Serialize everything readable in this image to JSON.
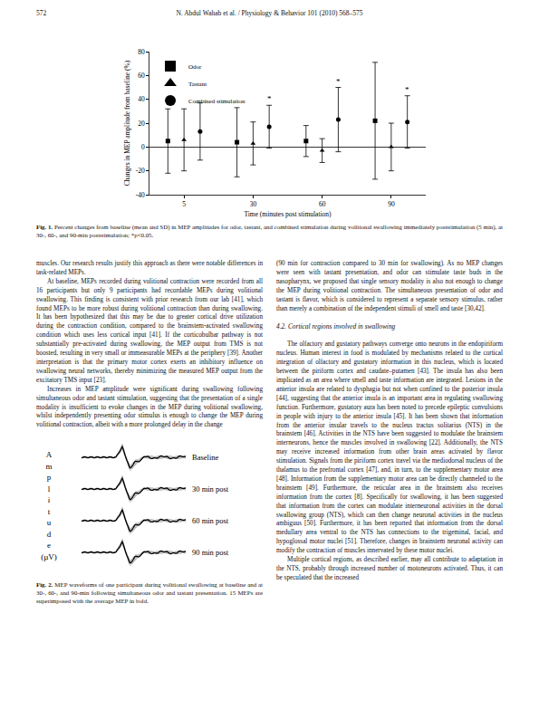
{
  "header": {
    "page": "572",
    "running_title": "N. Abdul Wahab et al. / Physiology & Behavior 101 (2010) 568–575"
  },
  "chart_data": {
    "type": "scatter",
    "x_label": "Time (minutes post stimulation)",
    "y_label": "Changes in MEP amplitude from baseline (%)",
    "categories": [
      "5",
      "30",
      "60",
      "90"
    ],
    "series": [
      {
        "name": "Odor",
        "color": "#000000",
        "marker": "square",
        "values": [
          5,
          4,
          5,
          22
        ],
        "sd": [
          27,
          29,
          13,
          49
        ]
      },
      {
        "name": "Tastant",
        "color": "#000000",
        "marker": "triangle",
        "values": [
          6,
          3,
          -3,
          0
        ],
        "sd": [
          26,
          18,
          10,
          20
        ]
      },
      {
        "name": "Combined stimulation",
        "color": "#000000",
        "marker": "circle",
        "values": [
          13,
          17,
          23,
          21
        ],
        "sd": [
          24,
          18,
          27,
          22
        ]
      }
    ],
    "ylim": [
      -40,
      80
    ],
    "yticks": [
      -40,
      -20,
      0,
      20,
      40,
      60,
      80
    ],
    "legend": "upper left",
    "grid": false,
    "annotations": [
      {
        "category": "30",
        "series": "Combined stimulation",
        "text": "*"
      },
      {
        "category": "60",
        "series": "Combined stimulation",
        "text": "*"
      },
      {
        "category": "90",
        "series": "Combined stimulation",
        "text": "*"
      }
    ]
  },
  "figure1_caption": {
    "label": "Fig. 1.",
    "text": "Percent changes from baseline (mean and SD) in MEP amplitudes for odor, tastant, and combined stimulation during volitional swallowing immediately poststimulation (5 min), at 30-, 60-, and 90-min poststimulation; *p<0.05."
  },
  "left_column": {
    "continued": "muscles. Our research results justify this approach as there were notable differences in task-related MEPs.",
    "paragraphs": [
      "At baseline, MEPs recorded during volitional contraction were recorded from all 16 participants but only 9 participants had recordable MEPs during volitional swallowing. This finding is consistent with prior research from our lab [41], which found MEPs to be more robust during volitional contraction than during swallowing. It has been hypothesized that this may be due to greater cortical drive utilization during the contraction condition, compared to the brainstem-activated swallowing condition which uses less cortical input [41]. If the corticobulbar pathway is not substantially pre-activated during swallowing, the MEP output from TMS is not boosted, resulting in very small or immeasurable MEPs at the periphery [39]. Another interpretation is that the primary motor cortex exerts an inhibitory influence on swallowing neural networks, thereby minimizing the measured MEP output from the excitatory TMS input [23].",
      "Increases in MEP amplitude were significant during swallowing following simultaneous odor and tastant stimulation, suggesting that the presentation of a single modality is insufficient to evoke changes in the MEP during volitional swallowing, whilst independently presenting odor stimulus is enough to change the MEP during volitional contraction, albeit with a more prolonged delay in the change"
    ]
  },
  "figure2": {
    "y_label_lines": [
      "A",
      "m",
      "p",
      "l",
      "i",
      "t",
      "u",
      "d",
      "e",
      "(µV)"
    ],
    "traces": [
      "Baseline",
      "30 min post",
      "60 min post",
      "90 min post"
    ],
    "caption": {
      "label": "Fig. 2.",
      "text": "MEP waveforms of one participant during volitional swallowing at baseline and at 30-, 60-, and 90-min following simultaneous odor and tastant presentation. 15 MEPs are superimposed with the average MEP in bold."
    }
  },
  "right_column": {
    "continued": "(90 min for contraction compared to 30 min for swallowing). As no MEP changes were seen with tastant presentation, and odor can stimulate taste buds in the nasopharynx, we proposed that single sensory modality is also not enough to change the MEP during volitional contraction. The simultaneous presentation of odor and tastant is flavor, which is considered to represent a separate sensory stimulus, rather than merely a combination of the independent stimuli of smell and taste [30,42].",
    "section_heading": "4.2. Cortical regions involved in swallowing",
    "paragraphs": [
      "The olfactory and gustatory pathways converge onto neurons in the endopiriform nucleus. Human interest in food is modulated by mechanisms related to the cortical integration of olfactory and gustatory information in this nucleus, which is located between the piriform cortex and caudate–putamen [43]. The insula has also been implicated as an area where smell and taste information are integrated. Lesions in the anterior insula are related to dysphagia but not when confined to the posterior insula [44], suggesting that the anterior insula is an important area in regulating swallowing function. Furthermore, gustatory aura has been noted to precede epileptic convulsions in people with injury to the anterior insula [45]. It has been shown that information from the anterior insular travels to the nucleus tractus solitarius (NTS) in the brainstem [46]. Activities in the NTS have been suggested to modulate the brainstem interneurons, hence the muscles involved in swallowing [22]. Additionally, the NTS may receive increased information from other brain areas activated by flavor stimulation. Signals from the piriform cortex travel via the mediodorsal nucleus of the thalamus to the prefrontal cortex [47], and, in turn, to the supplementary motor area [48]. Information from the supplementary motor area can be directly channeled to the brainstem [49]. Furthermore, the reticular area in the brainstem also receives information from the cortex [8]. Specifically for swallowing, it has been suggested that information from the cortex can modulate interneuronal activities in the dorsal swallowing group (NTS), which can then change neuronal activities in the nucleus ambiguus [50]. Furthermore, it has been reported that information from the dorsal medullary area ventral to the NTS has connections to the trigeminal, facial, and hypoglossal motor nuclei [51]. Therefore, changes in brainstem neuronal activity can modify the contraction of muscles innervated by these motor nuclei.",
      "Multiple cortical regions, as described earlier, may all contribute to adaptation in the NTS, probably through increased number of motoneurons activated. Thus, it can be speculated that the increased"
    ]
  }
}
